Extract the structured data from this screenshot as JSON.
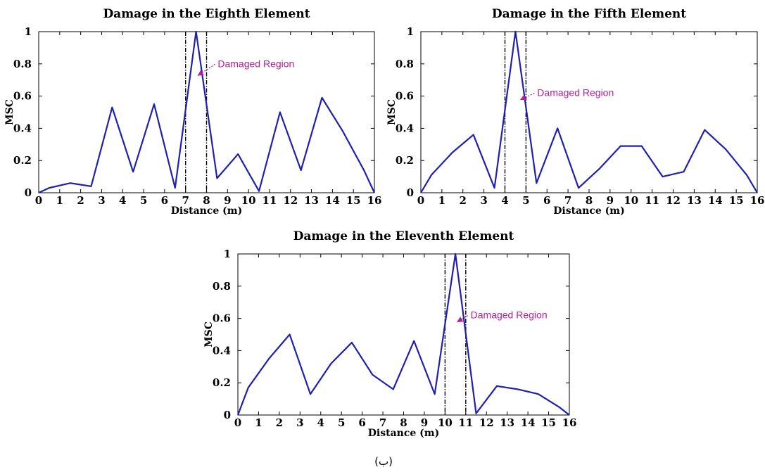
{
  "chart_data": [
    {
      "type": "line",
      "title": "Damage in the Eighth Element",
      "xlabel": "Distance (m)",
      "ylabel": "MSC",
      "xlim": [
        0,
        16
      ],
      "ylim": [
        0,
        1
      ],
      "xticks": [
        "0",
        "1",
        "2",
        "3",
        "4",
        "5",
        "6",
        "7",
        "8",
        "9",
        "10",
        "11",
        "12",
        "13",
        "14",
        "15",
        "16"
      ],
      "yticks": [
        "0",
        "0.2",
        "0.4",
        "0.6",
        "0.8",
        "1"
      ],
      "series": [
        {
          "color": "#1f1fb0",
          "x": [
            0,
            0.5,
            1.5,
            2.5,
            3.5,
            4.5,
            5.5,
            6.5,
            7.5,
            8.5,
            9.5,
            10.5,
            11.5,
            12.5,
            13.5,
            14.5,
            15.5,
            16
          ],
          "y": [
            0,
            0.03,
            0.06,
            0.04,
            0.53,
            0.13,
            0.55,
            0.03,
            1.0,
            0.09,
            0.24,
            0.01,
            0.5,
            0.14,
            0.59,
            0.38,
            0.14,
            0
          ]
        }
      ],
      "damaged_region": [
        7,
        8
      ],
      "annotation": {
        "text": "Damaged Region",
        "point": [
          7.5,
          0.72
        ],
        "text_pos": [
          8.6,
          0.78
        ]
      }
    },
    {
      "type": "line",
      "title": "Damage in the Fifth Element",
      "xlabel": "Distance (m)",
      "ylabel": "MSC",
      "xlim": [
        0,
        16
      ],
      "ylim": [
        0,
        1
      ],
      "xticks": [
        "0",
        "1",
        "2",
        "3",
        "4",
        "5",
        "6",
        "7",
        "8",
        "9",
        "10",
        "11",
        "12",
        "13",
        "14",
        "15",
        "16"
      ],
      "yticks": [
        "0",
        "0.2",
        "0.4",
        "0.6",
        "0.8",
        "1"
      ],
      "series": [
        {
          "color": "#1f1fb0",
          "x": [
            0,
            0.5,
            1.5,
            2.5,
            3.5,
            4.5,
            5.5,
            6.5,
            7.5,
            8.5,
            9.5,
            10.5,
            11.5,
            12.5,
            13.5,
            14.5,
            15.5,
            16
          ],
          "y": [
            0,
            0.11,
            0.25,
            0.36,
            0.03,
            1.0,
            0.06,
            0.4,
            0.03,
            0.15,
            0.29,
            0.29,
            0.1,
            0.13,
            0.39,
            0.27,
            0.11,
            0
          ]
        }
      ],
      "damaged_region": [
        4,
        5
      ],
      "annotation": {
        "text": "Damaged Region",
        "point": [
          4.65,
          0.57
        ],
        "text_pos": [
          5.6,
          0.6
        ]
      }
    },
    {
      "type": "line",
      "title": "Damage in the Eleventh Element",
      "xlabel": "Distance (m)",
      "ylabel": "MSC",
      "xlim": [
        0,
        16
      ],
      "ylim": [
        0,
        1
      ],
      "xticks": [
        "0",
        "1",
        "2",
        "3",
        "4",
        "5",
        "6",
        "7",
        "8",
        "9",
        "10",
        "11",
        "12",
        "13",
        "14",
        "15",
        "16"
      ],
      "yticks": [
        "0",
        "0.2",
        "0.4",
        "0.6",
        "0.8",
        "1"
      ],
      "series": [
        {
          "color": "#1f1fb0",
          "x": [
            0,
            0.5,
            1.5,
            2.5,
            3.5,
            4.5,
            5.5,
            6.5,
            7.5,
            8.5,
            9.5,
            10.5,
            11.5,
            12.5,
            13.5,
            14.5,
            15.5,
            16
          ],
          "y": [
            0,
            0.17,
            0.35,
            0.5,
            0.13,
            0.32,
            0.45,
            0.25,
            0.16,
            0.46,
            0.13,
            1.0,
            0.01,
            0.18,
            0.16,
            0.13,
            0.05,
            0
          ]
        }
      ],
      "damaged_region": [
        10,
        11
      ],
      "annotation": {
        "text": "Damaged Region",
        "point": [
          10.5,
          0.57
        ],
        "text_pos": [
          11.3,
          0.6
        ]
      }
    }
  ],
  "caption": "(ب)",
  "colors": {
    "line": "#1f1fb0",
    "annotation": "#b3209a",
    "region": "#000000"
  }
}
